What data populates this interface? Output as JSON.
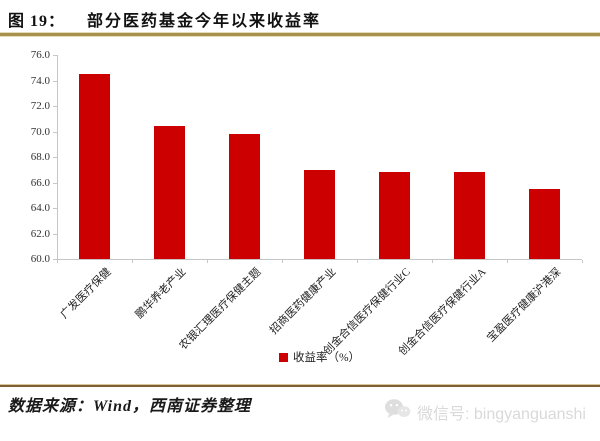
{
  "header": {
    "figure_label": "图 19：",
    "title": "部分医药基金今年以来收益率"
  },
  "chart_data": {
    "type": "bar",
    "title": "部分医药基金今年以来收益率",
    "categories": [
      "广发医疗保健",
      "鹏华养老产业",
      "农银汇理医疗保健主题",
      "招商医药健康产业",
      "创金合信医疗保健行业C",
      "创金合信医疗保健行业A",
      "宝盈医疗健康沪港深"
    ],
    "values": [
      74.5,
      70.4,
      69.8,
      67.0,
      66.8,
      66.8,
      65.5
    ],
    "legend": "收益率（%）",
    "xlabel": "",
    "ylabel": "",
    "ylim": [
      60.0,
      76.0
    ],
    "yticks": [
      76.0,
      74.0,
      72.0,
      70.0,
      68.0,
      66.0,
      64.0,
      62.0,
      60.0
    ],
    "grid": false,
    "legend_position": "bottom",
    "bar_color": "#CC0000"
  },
  "footer": {
    "source": "数据来源：Wind，西南证券整理",
    "wechat_label": "微信号: bingyanguanshi",
    "wechat_icon": "wechat-icon"
  },
  "colors": {
    "bar": "#CC0000",
    "title_rule": "#A8914F",
    "footer_rule": "#7D5F33",
    "axis": "#C6C6C6",
    "watermark": "#D9D9D9"
  }
}
